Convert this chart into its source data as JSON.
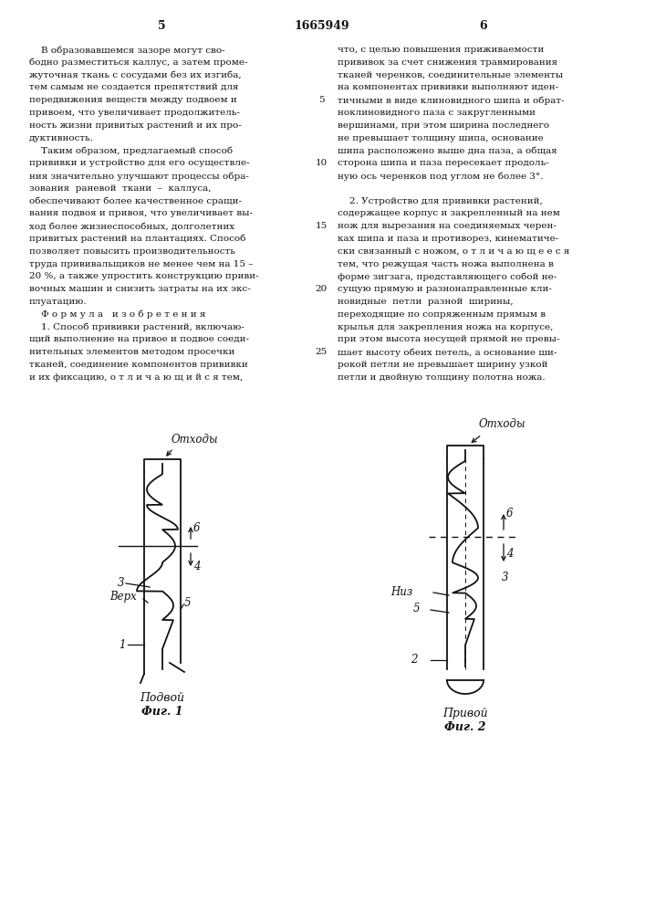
{
  "background_color": "#ffffff",
  "text_color": "#111111",
  "header_num_left": "5",
  "header_patent": "1665949",
  "header_num_right": "6",
  "left_column": [
    "    В образовавшемся зазоре могут сво-",
    "бодно разместиться каллус, а затем проме-",
    "жуточная ткань с сосудами без их изгиба,",
    "тем самым не создается препятствий для",
    "передвижения веществ между подвоем и",
    "привоем, что увеличивает продолжитель-",
    "ность жизни привитых растений и их про-",
    "дуктивность.",
    "    Таким образом, предлагаемый способ",
    "прививки и устройство для его осуществле-",
    "ния значительно улучшают процессы обра-",
    "зования  раневой  ткани  –  каллуса,",
    "обеспечивают более качественное сращи-",
    "вания подвоя и привоя, что увеличивает вы-",
    "ход более жизнеспособных, долголетних",
    "привитых растений на плантациях. Способ",
    "позволяет повысить производительность",
    "труда прививальщиков не менее чем на 15 –",
    "20 %, а также упростить конструкцию приви-",
    "вочных машин и снизить затраты на их экс-",
    "плуатацию.",
    "    Ф о р м у л а   и з о б р е т е н и я",
    "    1. Способ прививки растений, включаю-",
    "щий выполнение на привое и подвое соеди-",
    "нительных элементов методом просечки",
    "тканей, соединение компонентов прививки",
    "и их фиксацию, о т л и ч а ю щ и й с я тем,"
  ],
  "right_column": [
    "что, с целью повышения приживаемости",
    "прививок за счет снижения травмирования",
    "тканей черенков, соединительные элементы",
    "на компонентах прививки выполняют иден-",
    "тичными в виде клиновидного шипа и обрат-",
    "ноклиновидного паза с закругленными",
    "вершинами, при этом ширина последнего",
    "не превышает толщину шипа, основание",
    "шипа расположено выше дна паза, а общая",
    "сторона шипа и паза пересекает продоль-",
    "ную ось черенков под углом не более 3°.",
    "",
    "    2. Устройство для прививки растений,",
    "содержащее корпус и закрепленный на нем",
    "нож для вырезания на соединяемых черен-",
    "ках шипа и паза и противорез, кинематиче-",
    "ски связанный с ножом, о т л и ч а ю щ е е с я",
    "тем, что режущая часть ножа выполнена в",
    "форме зигзага, представляющего собой не-",
    "сущую прямую и разнонаправленные кли-",
    "новидные  петли  разной  ширины,",
    "переходящие по сопряженным прямым в",
    "крылья для закрепления ножа на корпусе,",
    "при этом высота несущей прямой не превы-",
    "шает высоту обеих петель, а основание ши-",
    "рокой петли не превышает ширину узкой",
    "петли и двойную толщину полотна ножа."
  ],
  "line_nums_idx": [
    4,
    9,
    14,
    19,
    24
  ],
  "line_nums_val": [
    "5",
    "10",
    "15",
    "20",
    "25"
  ],
  "fig1_title": "Подвой",
  "fig1_caption": "Фиг. 1",
  "fig2_title": "Привой",
  "fig2_caption": "Фиг. 2",
  "otkhody": "Отходы",
  "verkh": "Верх",
  "niz": "Низ"
}
